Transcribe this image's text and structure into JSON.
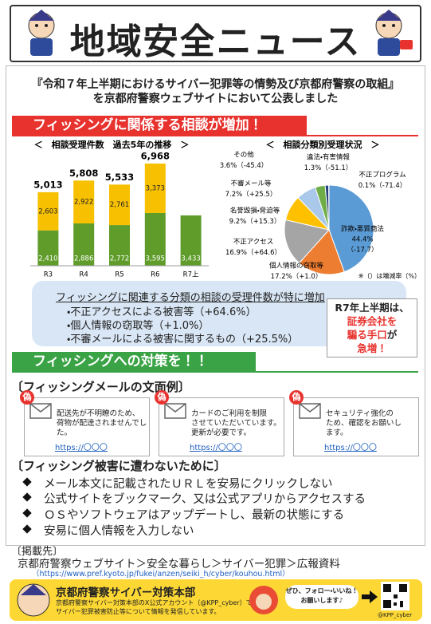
{
  "header": {
    "title": "地域安全ニュース"
  },
  "headline": [
    "『令和７年上半期におけるサイバー犯罪等の情勢及び京都府警察の取組』",
    "を京都府警察ウェブサイトにおいて公表しました"
  ],
  "banner1": "フィッシングに関係する相談が増加！",
  "chart_data": [
    {
      "type": "stacked-bar",
      "title": "＜　相談受理件数　過去5年の推移　＞",
      "categories": [
        "R3",
        "R4",
        "R5",
        "R6",
        "R7上"
      ],
      "series": [
        {
          "color": "#5f9c2a",
          "values": [
            2410,
            2886,
            2772,
            3595,
            3433
          ],
          "value_labels": [
            "2,410",
            "2,886",
            "2,772",
            "3,595",
            "3,433"
          ]
        },
        {
          "color": "#f7c000",
          "values": [
            2603,
            2922,
            2761,
            3373,
            null
          ],
          "value_labels": [
            "2,603",
            "2,922",
            "2,761",
            "3,373",
            null
          ]
        }
      ],
      "totals": {
        "values": [
          5013,
          5808,
          5533,
          6968,
          null
        ],
        "value_labels": [
          "5,013",
          "5,808",
          "5,533",
          "6,968",
          null
        ]
      },
      "ylim": [
        0,
        8000
      ]
    },
    {
      "type": "pie",
      "title": "＜　相談分類別受理状況　＞",
      "categories": [
        "詐欺・悪質商法",
        "個人情報の窃取等",
        "不正アクセス",
        "名誉毀損・脅迫等",
        "不審メール等",
        "その他",
        "違法・有害情報",
        "不正プログラム"
      ],
      "values": [
        44.4,
        17.2,
        16.9,
        9.2,
        7.2,
        3.6,
        1.3,
        0.1
      ],
      "value_labels": [
        "44.4%",
        "17.2%",
        "16.9%",
        "9.2%",
        "7.2%",
        "3.6%",
        "1.3%",
        "0.1%"
      ],
      "changes": [
        "（-17.7）",
        "（+1.0）",
        "（+64.6）",
        "（+15.3）",
        "（+25.5）",
        "（-45.4）",
        "（-51.1）",
        "（-71.4）"
      ],
      "colors": [
        "#5b9bd5",
        "#ed7d31",
        "#a5a5a5",
        "#ffc000",
        "#a9c8ea",
        "#70ad47",
        "#264478",
        "#9e480e"
      ],
      "note": "※（）は増減率（%）"
    }
  ],
  "highlight": {
    "title": "フィッシングに関連する分類の相談の受理件数が特に増加",
    "items": [
      "・不正アクセスによる被害等（+64.6%）",
      "・個人情報の窃取等（+1.0%）",
      "・不審メールによる被害に関するもの（+25.5%）"
    ]
  },
  "side_box": [
    "R7年上半期は、",
    "証券会社を",
    "騙る手口",
    "が",
    "急増！"
  ],
  "banner2": "フィッシングへの対策を！！",
  "examples": {
    "heading": "〔フィッシングメールの文面例〕",
    "cards": [
      {
        "mark": "偽",
        "lines": [
          "配送先が不明瞭のため、",
          "荷物が配達されませんでし",
          "た。"
        ],
        "link": "https://〇〇〇"
      },
      {
        "mark": "偽",
        "lines": [
          "カードのご利用を制限",
          "させていただいています。",
          "更新が必要です。"
        ],
        "link": "https://〇〇〇"
      },
      {
        "mark": "偽",
        "lines": [
          "セキュリティ強化の",
          "ため、確認をお願いし",
          "ます。"
        ],
        "link": "https://〇〇〇"
      }
    ]
  },
  "tips": {
    "heading": "〔フィッシング被害に遭わないために〕",
    "items": [
      "メール本文に記載されたＵＲＬを安易にクリックしない",
      "公式サイトをブックマーク、又は公式アプリからアクセスする",
      "ＯＳやソフトウェアはアップデートし、最新の状態にする",
      "安易に個人情報を入力しない"
    ]
  },
  "source": {
    "heading": "〔掲載先〕",
    "path": "京都府警察ウェブサイト＞安全な暮らし＞サイバー犯罪＞広報資料",
    "url": "（https://www.pref.kyoto.jp/fukei/anzen/seiki_h/cyber/kouhou.html）"
  },
  "footer": {
    "title": "京都府警察サイバー対策本部",
    "lines": [
      "京都府警察サイバー対策本部のX公式アカウント（@KPP_cyber）では、",
      "サイバー犯罪被害防止等について情報を発信しています。"
    ],
    "bubble": [
      "ぜひ、フォロー・いいね！",
      "お願いします♪"
    ],
    "handle": "@KPP_cyber"
  }
}
